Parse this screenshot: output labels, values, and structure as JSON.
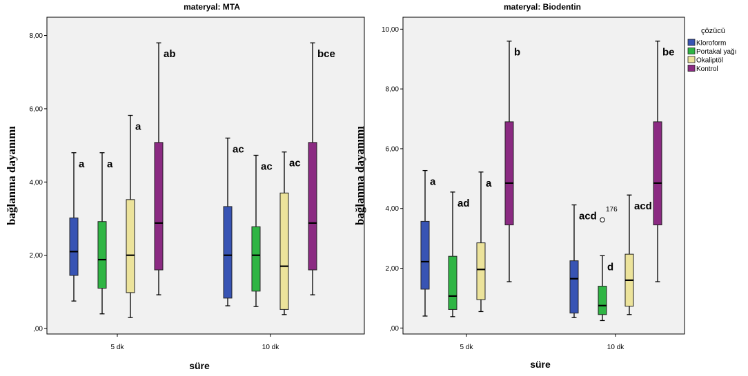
{
  "chart_data": [
    {
      "type": "boxplot",
      "title": "materyal: MTA",
      "xlabel": "süre",
      "ylabel": "bağlanma dayanımı",
      "ylim": [
        -0.15,
        8.5
      ],
      "yticks": [
        0,
        2,
        4,
        6,
        8
      ],
      "ytick_labels": [
        ",00",
        "2,00",
        "4,00",
        "6,00",
        "8,00"
      ],
      "categories": [
        "5 dk",
        "10 dk"
      ],
      "series": [
        {
          "name": "Kloroform",
          "boxes": [
            {
              "min": 0.75,
              "q1": 1.45,
              "median": 2.1,
              "q3": 3.02,
              "max": 4.8,
              "label": "a"
            },
            {
              "min": 0.62,
              "q1": 0.83,
              "median": 2.0,
              "q3": 3.33,
              "max": 5.2,
              "label": "ac"
            }
          ]
        },
        {
          "name": "Portakal yağı",
          "boxes": [
            {
              "min": 0.4,
              "q1": 1.1,
              "median": 1.88,
              "q3": 2.92,
              "max": 4.8,
              "label": "a"
            },
            {
              "min": 0.6,
              "q1": 1.02,
              "median": 2.0,
              "q3": 2.78,
              "max": 4.73,
              "label": "ac"
            }
          ]
        },
        {
          "name": "Okaliptöl",
          "boxes": [
            {
              "min": 0.3,
              "q1": 0.98,
              "median": 2.0,
              "q3": 3.52,
              "max": 5.82,
              "label": "a"
            },
            {
              "min": 0.38,
              "q1": 0.52,
              "median": 1.7,
              "q3": 3.7,
              "max": 4.82,
              "label": "ac"
            }
          ]
        },
        {
          "name": "Kontrol",
          "boxes": [
            {
              "min": 0.92,
              "q1": 1.6,
              "median": 2.88,
              "q3": 5.08,
              "max": 7.8,
              "label": "ab"
            },
            {
              "min": 0.92,
              "q1": 1.6,
              "median": 2.88,
              "q3": 5.08,
              "max": 7.8,
              "label": "bce"
            }
          ]
        }
      ]
    },
    {
      "type": "boxplot",
      "title": "materyal: Biodentin",
      "xlabel": "süre",
      "ylabel": "bağlanma dayanımı",
      "ylim": [
        -0.2,
        10.4
      ],
      "yticks": [
        0,
        2,
        4,
        6,
        8,
        10
      ],
      "ytick_labels": [
        ",00",
        "2,00",
        "4,00",
        "6,00",
        "8,00",
        "10,00"
      ],
      "categories": [
        "5 dk",
        "10 dk"
      ],
      "legend": {
        "title": "çözücü",
        "position": "right",
        "items": [
          {
            "name": "Kloroform",
            "color": "#3854b4"
          },
          {
            "name": "Portakal yağı",
            "color": "#2fb544"
          },
          {
            "name": "Okaliptöl",
            "color": "#ece39b"
          },
          {
            "name": "Kontrol",
            "color": "#8b2a82"
          }
        ]
      },
      "series": [
        {
          "name": "Kloroform",
          "boxes": [
            {
              "min": 0.4,
              "q1": 1.3,
              "median": 2.22,
              "q3": 3.57,
              "max": 5.27,
              "label": "a"
            },
            {
              "min": 0.35,
              "q1": 0.5,
              "median": 1.65,
              "q3": 2.25,
              "max": 4.12,
              "label": "acd"
            }
          ]
        },
        {
          "name": "Portakal yağı",
          "boxes": [
            {
              "min": 0.38,
              "q1": 0.62,
              "median": 1.07,
              "q3": 2.4,
              "max": 4.55,
              "label": "ad"
            },
            {
              "min": 0.25,
              "q1": 0.45,
              "median": 0.75,
              "q3": 1.4,
              "max": 2.42,
              "label": "d",
              "outliers": [
                {
                  "value": 3.62,
                  "label": "176"
                }
              ]
            }
          ]
        },
        {
          "name": "Okaliptöl",
          "boxes": [
            {
              "min": 0.55,
              "q1": 0.95,
              "median": 1.96,
              "q3": 2.85,
              "max": 5.22,
              "label": "a"
            },
            {
              "min": 0.45,
              "q1": 0.73,
              "median": 1.6,
              "q3": 2.47,
              "max": 4.45,
              "label": "acd"
            }
          ]
        },
        {
          "name": "Kontrol",
          "boxes": [
            {
              "min": 1.55,
              "q1": 3.45,
              "median": 4.85,
              "q3": 6.9,
              "max": 9.6,
              "label": "b"
            },
            {
              "min": 1.55,
              "q1": 3.45,
              "median": 4.85,
              "q3": 6.9,
              "max": 9.6,
              "label": "be"
            }
          ]
        }
      ]
    }
  ],
  "colors": {
    "plot_bg": "#f1f1f1",
    "series": [
      "#3854b4",
      "#2fb544",
      "#ece39b",
      "#8b2a82"
    ]
  }
}
